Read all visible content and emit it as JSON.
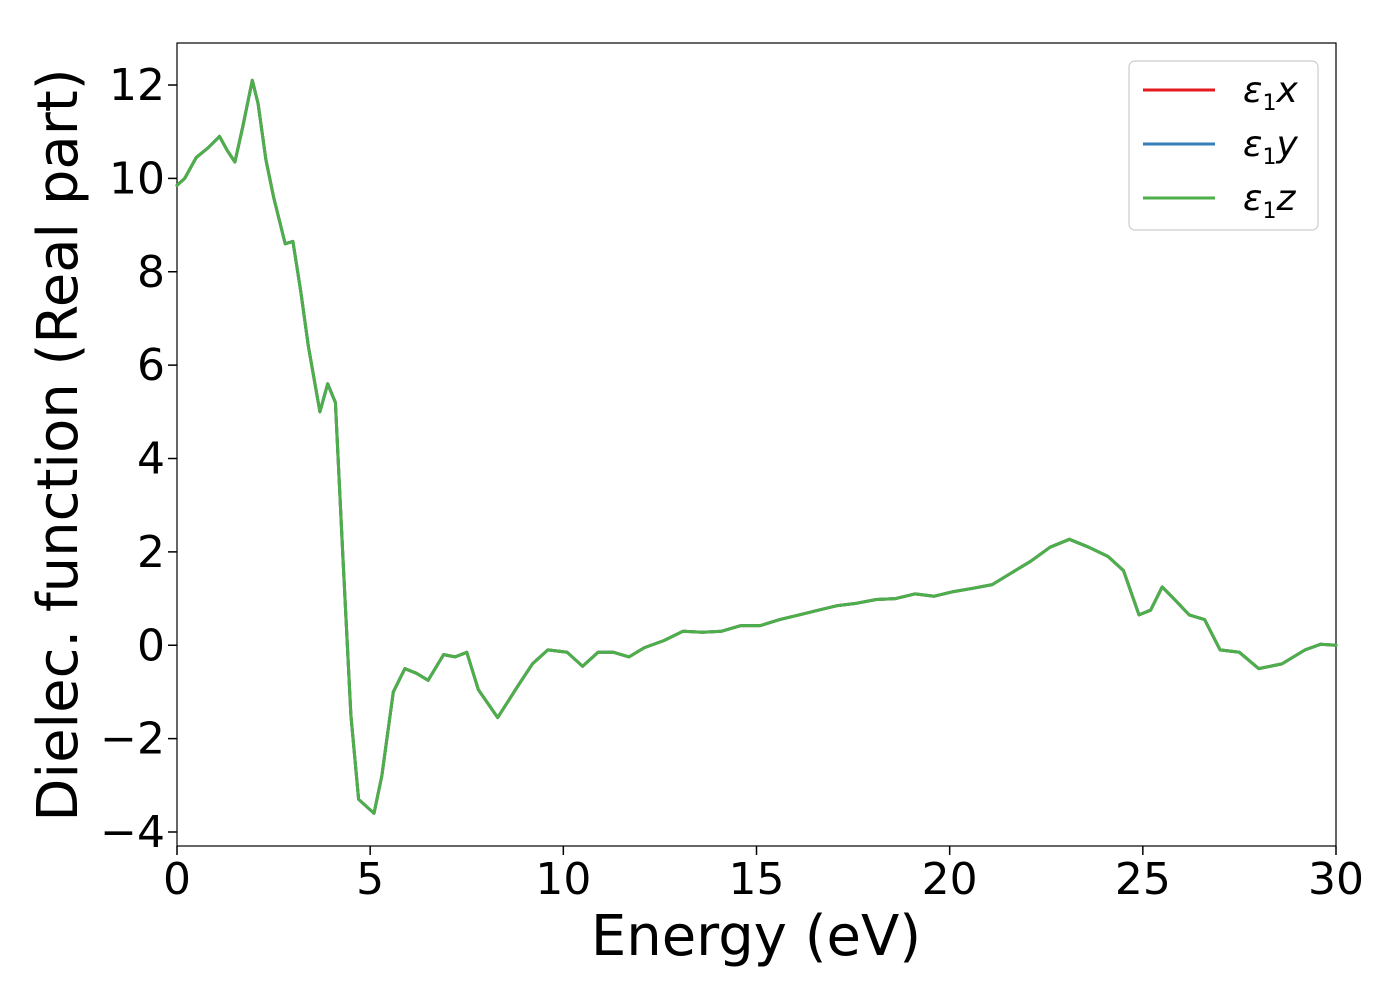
{
  "chart_data": {
    "type": "line",
    "title": "",
    "xlabel": "Energy (eV)",
    "ylabel": "Dielec. function (Real part)",
    "xlim": [
      0,
      30
    ],
    "ylim": [
      -4.3,
      12.9
    ],
    "xticks": [
      0,
      5,
      10,
      15,
      20,
      25,
      30
    ],
    "xtick_labels": [
      "0",
      "5",
      "10",
      "15",
      "20",
      "25",
      "30"
    ],
    "yticks": [
      -4,
      -2,
      0,
      2,
      4,
      6,
      8,
      10,
      12
    ],
    "ytick_labels": [
      "−4",
      "−2",
      "0",
      "2",
      "4",
      "6",
      "8",
      "10",
      "12"
    ],
    "grid": false,
    "legend_position": "top-right",
    "x": [
      0,
      0.2,
      0.5,
      0.8,
      1.1,
      1.3,
      1.5,
      1.7,
      1.95,
      2.1,
      2.3,
      2.5,
      2.8,
      3.0,
      3.2,
      3.4,
      3.7,
      3.9,
      4.1,
      4.3,
      4.5,
      4.7,
      4.9,
      5.1,
      5.3,
      5.6,
      5.9,
      6.2,
      6.5,
      6.9,
      7.2,
      7.5,
      7.8,
      8.3,
      8.8,
      9.2,
      9.6,
      10.1,
      10.5,
      10.9,
      11.3,
      11.7,
      12.1,
      12.6,
      13.1,
      13.6,
      14.1,
      14.6,
      15.1,
      15.6,
      16.1,
      16.6,
      17.1,
      17.6,
      18.1,
      18.6,
      19.1,
      19.6,
      20.1,
      20.6,
      21.1,
      21.6,
      22.1,
      22.6,
      23.1,
      23.6,
      24.1,
      24.5,
      24.9,
      25.2,
      25.5,
      25.8,
      26.2,
      26.6,
      27.0,
      27.5,
      28.0,
      28.6,
      29.2,
      29.6,
      30.0
    ],
    "series": [
      {
        "name": "x",
        "color": "#e41a1c",
        "values": [
          9.85,
          10.0,
          10.45,
          10.65,
          10.9,
          10.6,
          10.35,
          11.1,
          12.1,
          11.6,
          10.4,
          9.6,
          8.6,
          8.65,
          7.6,
          6.4,
          5.0,
          5.6,
          5.2,
          1.8,
          -1.5,
          -3.3,
          -3.45,
          -3.6,
          -2.8,
          -1.0,
          -0.5,
          -0.6,
          -0.75,
          -0.2,
          -0.25,
          -0.15,
          -0.95,
          -1.55,
          -0.9,
          -0.4,
          -0.1,
          -0.15,
          -0.45,
          -0.15,
          -0.15,
          -0.25,
          -0.05,
          0.1,
          0.3,
          0.28,
          0.3,
          0.42,
          0.42,
          0.55,
          0.65,
          0.75,
          0.85,
          0.9,
          0.98,
          1.0,
          1.1,
          1.05,
          1.15,
          1.22,
          1.3,
          1.55,
          1.8,
          2.1,
          2.27,
          2.1,
          1.9,
          1.6,
          0.65,
          0.75,
          1.25,
          1.0,
          0.65,
          0.55,
          -0.1,
          -0.15,
          -0.5,
          -0.4,
          -0.1,
          0.02,
          0.0
        ]
      },
      {
        "name": "y",
        "color": "#377eb8",
        "values": [
          9.85,
          10.0,
          10.45,
          10.65,
          10.9,
          10.6,
          10.35,
          11.1,
          12.1,
          11.6,
          10.4,
          9.6,
          8.6,
          8.65,
          7.6,
          6.4,
          5.0,
          5.6,
          5.2,
          1.8,
          -1.5,
          -3.3,
          -3.45,
          -3.6,
          -2.8,
          -1.0,
          -0.5,
          -0.6,
          -0.75,
          -0.2,
          -0.25,
          -0.15,
          -0.95,
          -1.55,
          -0.9,
          -0.4,
          -0.1,
          -0.15,
          -0.45,
          -0.15,
          -0.15,
          -0.25,
          -0.05,
          0.1,
          0.3,
          0.28,
          0.3,
          0.42,
          0.42,
          0.55,
          0.65,
          0.75,
          0.85,
          0.9,
          0.98,
          1.0,
          1.1,
          1.05,
          1.15,
          1.22,
          1.3,
          1.55,
          1.8,
          2.1,
          2.27,
          2.1,
          1.9,
          1.6,
          0.65,
          0.75,
          1.25,
          1.0,
          0.65,
          0.55,
          -0.1,
          -0.15,
          -0.5,
          -0.4,
          -0.1,
          0.02,
          0.0
        ]
      },
      {
        "name": "z",
        "color": "#4daf4a",
        "values": [
          9.85,
          10.0,
          10.45,
          10.65,
          10.9,
          10.6,
          10.35,
          11.1,
          12.1,
          11.6,
          10.4,
          9.6,
          8.6,
          8.65,
          7.6,
          6.4,
          5.0,
          5.6,
          5.2,
          1.8,
          -1.5,
          -3.3,
          -3.45,
          -3.6,
          -2.8,
          -1.0,
          -0.5,
          -0.6,
          -0.75,
          -0.2,
          -0.25,
          -0.15,
          -0.95,
          -1.55,
          -0.9,
          -0.4,
          -0.1,
          -0.15,
          -0.45,
          -0.15,
          -0.15,
          -0.25,
          -0.05,
          0.1,
          0.3,
          0.28,
          0.3,
          0.42,
          0.42,
          0.55,
          0.65,
          0.75,
          0.85,
          0.9,
          0.98,
          1.0,
          1.1,
          1.05,
          1.15,
          1.22,
          1.3,
          1.55,
          1.8,
          2.1,
          2.27,
          2.1,
          1.9,
          1.6,
          0.65,
          0.75,
          1.25,
          1.0,
          0.65,
          0.55,
          -0.1,
          -0.15,
          -0.5,
          -0.4,
          -0.1,
          0.02,
          0.0
        ]
      }
    ],
    "legend": [
      {
        "symbol": "ε",
        "sub": "1",
        "axis": "x",
        "color": "#e41a1c"
      },
      {
        "symbol": "ε",
        "sub": "1",
        "axis": "y",
        "color": "#377eb8"
      },
      {
        "symbol": "ε",
        "sub": "1",
        "axis": "z",
        "color": "#4daf4a"
      }
    ]
  }
}
